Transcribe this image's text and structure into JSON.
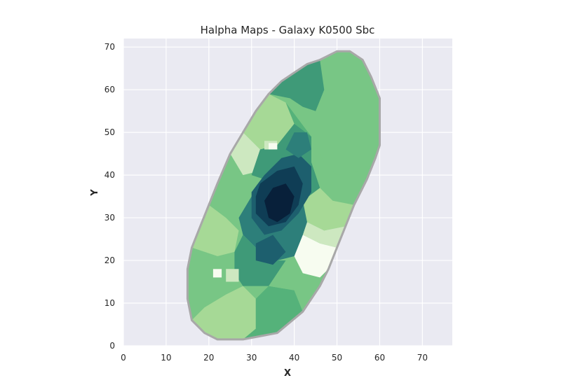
{
  "chart_data": {
    "type": "heatmap",
    "title": "Halpha Maps - Galaxy K0500 Sbc",
    "xlabel": "X",
    "ylabel": "Y",
    "xlim": [
      0,
      77
    ],
    "ylim": [
      0,
      72
    ],
    "xticks": [
      0,
      10,
      20,
      30,
      40,
      50,
      60,
      70
    ],
    "yticks": [
      0,
      10,
      20,
      30,
      40,
      50,
      60,
      70
    ],
    "grid": true,
    "colormap": "YlGnBu-green (light = low, dark = high)",
    "colors": {
      "background": "#eaeaf2",
      "grid": "#ffffff",
      "outline": "#a8a8a8",
      "c0": "#f7fcf0",
      "c1": "#cde8c0",
      "c2": "#a6d996",
      "c3": "#78c685",
      "c4": "#55b27a",
      "c5": "#3f9a78",
      "c6": "#2d7f7a",
      "c7": "#1d5f6e",
      "c8": "#0f3d55",
      "c9": "#08203a"
    },
    "galaxy_outline": [
      [
        22,
        1.5
      ],
      [
        28,
        1.5
      ],
      [
        36,
        3
      ],
      [
        42,
        8
      ],
      [
        46,
        14
      ],
      [
        48,
        18
      ],
      [
        50,
        23
      ],
      [
        52,
        28
      ],
      [
        54,
        33
      ],
      [
        57,
        39
      ],
      [
        59,
        44
      ],
      [
        60,
        47
      ],
      [
        60,
        58
      ],
      [
        58,
        63
      ],
      [
        56,
        67
      ],
      [
        53,
        69
      ],
      [
        50,
        69
      ],
      [
        46,
        67
      ],
      [
        43,
        66
      ],
      [
        40,
        64
      ],
      [
        37,
        62
      ],
      [
        34,
        59
      ],
      [
        31,
        55
      ],
      [
        28,
        50
      ],
      [
        25,
        45
      ],
      [
        22,
        38
      ],
      [
        20,
        33
      ],
      [
        18,
        28
      ],
      [
        16,
        23
      ],
      [
        15,
        18
      ],
      [
        15,
        11
      ],
      [
        16,
        6
      ],
      [
        19,
        3
      ]
    ],
    "regions": [
      {
        "level": 3,
        "polygon": [
          [
            37,
            62
          ],
          [
            40,
            64
          ],
          [
            43,
            66
          ],
          [
            46,
            67
          ],
          [
            50,
            69
          ],
          [
            53,
            69
          ],
          [
            56,
            67
          ],
          [
            58,
            63
          ],
          [
            60,
            58
          ],
          [
            60,
            47
          ],
          [
            55,
            41
          ],
          [
            50,
            40
          ],
          [
            47,
            43
          ],
          [
            44,
            49
          ],
          [
            41,
            53
          ],
          [
            38,
            57
          ]
        ]
      },
      {
        "level": 4,
        "polygon": [
          [
            38,
            57
          ],
          [
            41,
            53
          ],
          [
            44,
            49
          ],
          [
            41,
            47
          ],
          [
            37,
            50
          ],
          [
            34,
            55
          ]
        ]
      },
      {
        "level": 5,
        "polygon": [
          [
            34,
            59
          ],
          [
            37,
            62
          ],
          [
            40,
            64
          ],
          [
            43,
            66
          ],
          [
            46,
            67
          ],
          [
            47,
            60
          ],
          [
            45,
            55
          ],
          [
            42,
            56
          ],
          [
            39,
            58
          ]
        ]
      },
      {
        "level": 2,
        "polygon": [
          [
            28,
            50
          ],
          [
            31,
            55
          ],
          [
            34,
            59
          ],
          [
            38,
            57
          ],
          [
            40,
            52
          ],
          [
            36,
            47
          ],
          [
            32,
            46
          ]
        ]
      },
      {
        "level": 1,
        "polygon": [
          [
            25,
            45
          ],
          [
            28,
            50
          ],
          [
            32,
            46
          ],
          [
            32,
            41
          ],
          [
            28,
            40
          ],
          [
            25,
            42
          ]
        ]
      },
      {
        "level": 3,
        "polygon": [
          [
            20,
            33
          ],
          [
            22,
            38
          ],
          [
            25,
            45
          ],
          [
            28,
            40
          ],
          [
            30,
            35
          ],
          [
            27,
            30
          ],
          [
            24,
            30
          ]
        ]
      },
      {
        "level": 2,
        "polygon": [
          [
            16,
            23
          ],
          [
            18,
            28
          ],
          [
            20,
            33
          ],
          [
            24,
            30
          ],
          [
            27,
            27
          ],
          [
            26,
            22
          ],
          [
            22,
            21
          ]
        ]
      },
      {
        "level": 3,
        "polygon": [
          [
            15,
            11
          ],
          [
            15,
            18
          ],
          [
            16,
            23
          ],
          [
            22,
            21
          ],
          [
            26,
            17
          ],
          [
            24,
            12
          ],
          [
            19,
            9
          ]
        ]
      },
      {
        "level": 2,
        "polygon": [
          [
            16,
            6
          ],
          [
            19,
            3
          ],
          [
            22,
            1.5
          ],
          [
            28,
            1.5
          ],
          [
            31,
            4
          ],
          [
            31,
            11
          ],
          [
            28,
            14
          ],
          [
            24,
            12
          ],
          [
            19,
            9
          ]
        ]
      },
      {
        "level": 4,
        "polygon": [
          [
            28,
            1.5
          ],
          [
            36,
            3
          ],
          [
            42,
            8
          ],
          [
            40,
            13
          ],
          [
            34,
            14
          ],
          [
            31,
            11
          ],
          [
            31,
            4
          ]
        ]
      },
      {
        "level": 3,
        "polygon": [
          [
            34,
            14
          ],
          [
            40,
            13
          ],
          [
            42,
            8
          ],
          [
            46,
            14
          ],
          [
            48,
            18
          ],
          [
            44,
            21
          ],
          [
            38,
            20
          ]
        ]
      },
      {
        "level": 3,
        "polygon": [
          [
            44,
            43
          ],
          [
            47,
            43
          ],
          [
            50,
            40
          ],
          [
            55,
            41
          ],
          [
            57,
            39
          ],
          [
            54,
            33
          ],
          [
            49,
            34
          ],
          [
            46,
            37
          ]
        ]
      },
      {
        "level": 2,
        "polygon": [
          [
            42,
            34
          ],
          [
            46,
            37
          ],
          [
            49,
            34
          ],
          [
            54,
            33
          ],
          [
            52,
            28
          ],
          [
            47,
            27
          ],
          [
            43,
            29
          ]
        ]
      },
      {
        "level": 1,
        "polygon": [
          [
            43,
            29
          ],
          [
            47,
            27
          ],
          [
            52,
            28
          ],
          [
            50,
            23
          ],
          [
            46,
            24
          ],
          [
            42,
            26
          ]
        ]
      },
      {
        "level": 0,
        "polygon": [
          [
            40,
            21
          ],
          [
            42,
            26
          ],
          [
            46,
            24
          ],
          [
            50,
            23
          ],
          [
            48,
            18
          ],
          [
            46,
            16
          ],
          [
            42,
            17
          ]
        ]
      },
      {
        "level": 5,
        "polygon": [
          [
            32,
            46
          ],
          [
            36,
            47
          ],
          [
            40,
            52
          ],
          [
            44,
            49
          ],
          [
            44,
            43
          ],
          [
            46,
            37
          ],
          [
            42,
            34
          ],
          [
            38,
            36
          ],
          [
            33,
            39
          ],
          [
            30,
            40
          ]
        ]
      },
      {
        "level": 6,
        "polygon": [
          [
            30,
            35
          ],
          [
            33,
            39
          ],
          [
            38,
            36
          ],
          [
            42,
            34
          ],
          [
            43,
            29
          ],
          [
            42,
            26
          ],
          [
            40,
            21
          ],
          [
            36,
            20
          ],
          [
            32,
            22
          ],
          [
            28,
            26
          ],
          [
            27,
            30
          ]
        ]
      },
      {
        "level": 5,
        "polygon": [
          [
            26,
            17
          ],
          [
            26,
            22
          ],
          [
            28,
            26
          ],
          [
            32,
            22
          ],
          [
            36,
            20
          ],
          [
            38,
            20
          ],
          [
            34,
            14
          ],
          [
            28,
            14
          ]
        ]
      },
      {
        "level": 7,
        "polygon": [
          [
            33,
            40
          ],
          [
            37,
            44
          ],
          [
            41,
            45
          ],
          [
            44,
            42
          ],
          [
            44,
            36
          ],
          [
            41,
            31
          ],
          [
            37,
            27
          ],
          [
            33,
            26
          ],
          [
            30,
            30
          ],
          [
            30,
            36
          ]
        ]
      },
      {
        "level": 7,
        "polygon": [
          [
            31,
            24
          ],
          [
            35,
            26
          ],
          [
            38,
            22
          ],
          [
            35,
            19
          ],
          [
            31,
            20
          ]
        ]
      },
      {
        "level": 8,
        "polygon": [
          [
            32,
            38
          ],
          [
            36,
            41
          ],
          [
            40,
            42
          ],
          [
            42,
            38
          ],
          [
            41,
            33
          ],
          [
            38,
            29
          ],
          [
            34,
            28
          ],
          [
            31,
            31
          ],
          [
            31,
            35
          ]
        ]
      },
      {
        "level": 9,
        "polygon": [
          [
            33,
            34
          ],
          [
            35,
            37
          ],
          [
            38,
            38
          ],
          [
            40,
            35
          ],
          [
            39,
            31
          ],
          [
            36,
            29
          ],
          [
            34,
            30
          ]
        ]
      },
      {
        "level": 6,
        "polygon": [
          [
            38,
            46
          ],
          [
            40,
            50
          ],
          [
            43,
            50
          ],
          [
            44,
            46
          ],
          [
            41,
            44
          ]
        ]
      },
      {
        "level": 1,
        "polygon": [
          [
            33,
            46
          ],
          [
            36,
            46
          ],
          [
            36,
            48
          ],
          [
            33,
            48
          ]
        ]
      },
      {
        "level": 0,
        "polygon": [
          [
            34,
            46
          ],
          [
            36,
            46
          ],
          [
            36,
            47.5
          ],
          [
            34,
            47.5
          ]
        ]
      },
      {
        "level": 0,
        "polygon": [
          [
            21,
            16
          ],
          [
            23,
            16
          ],
          [
            23,
            18
          ],
          [
            21,
            18
          ]
        ]
      },
      {
        "level": 1,
        "polygon": [
          [
            24,
            15
          ],
          [
            27,
            15
          ],
          [
            27,
            18
          ],
          [
            24,
            18
          ]
        ]
      }
    ]
  }
}
